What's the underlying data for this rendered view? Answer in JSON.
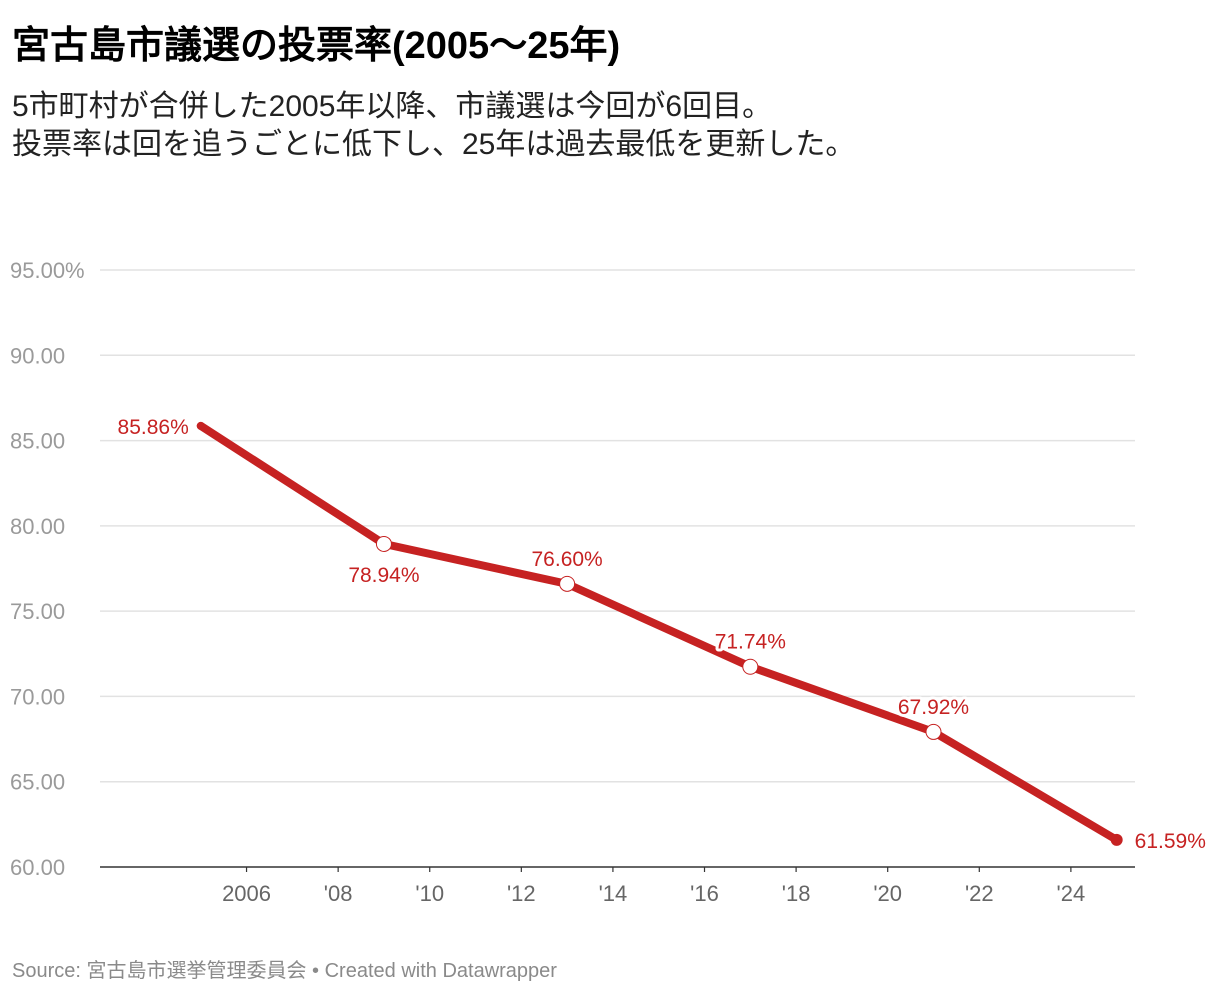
{
  "header": {
    "title": "宮古島市議選の投票率(2005〜25年)",
    "subtitle_line1": "5市町村が合併した2005年以降、市議選は今回が6回目。",
    "subtitle_line2": "投票率は回を追うごとに低下し、25年は過去最低を更新した。"
  },
  "footer": {
    "source_label": "Source: ",
    "source": "宮古島市選挙管理委員会",
    "separator": " • ",
    "credit": "Created with Datawrapper"
  },
  "colors": {
    "line": "#c62222",
    "grid": "#e2e2e2",
    "axis": "#333333"
  },
  "chart_data": {
    "type": "line",
    "title": "宮古島市議選の投票率(2005〜25年)",
    "xlabel": "",
    "ylabel": "",
    "x": [
      2005,
      2009,
      2013,
      2017,
      2021,
      2025
    ],
    "series": [
      {
        "name": "投票率",
        "values": [
          85.86,
          78.94,
          76.6,
          71.74,
          67.92,
          61.59
        ],
        "labels": [
          "85.86%",
          "78.94%",
          "76.60%",
          "71.74%",
          "67.92%",
          "61.59%"
        ],
        "label_positions": [
          "left",
          "below",
          "above",
          "above",
          "above",
          "right"
        ]
      }
    ],
    "xlim": [
      2002.8,
      2025.4
    ],
    "ylim": [
      60,
      95
    ],
    "yticks": [
      60,
      65,
      70,
      75,
      80,
      85,
      90,
      95
    ],
    "ytick_labels": [
      "60.00",
      "65.00",
      "70.00",
      "75.00",
      "80.00",
      "85.00",
      "90.00",
      "95.00%"
    ],
    "xticks": [
      2006,
      2008,
      2010,
      2012,
      2014,
      2016,
      2018,
      2020,
      2022,
      2024
    ],
    "xtick_labels": [
      "2006",
      "'08",
      "'10",
      "'12",
      "'14",
      "'16",
      "'18",
      "'20",
      "'22",
      "'24"
    ],
    "grid": true
  }
}
